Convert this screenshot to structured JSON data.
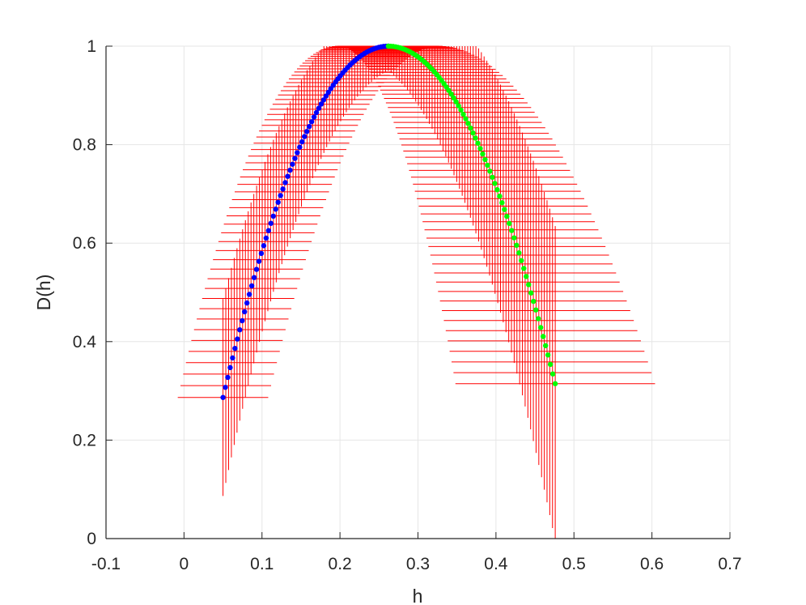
{
  "chart_data": {
    "type": "scatter",
    "title": "",
    "xlabel": "h",
    "ylabel": "D(h)",
    "xlim": [
      -0.1,
      0.7
    ],
    "ylim": [
      0,
      1
    ],
    "xticks": [
      "-0.1",
      "0",
      "0.1",
      "0.2",
      "0.3",
      "0.4",
      "0.5",
      "0.6",
      "0.7"
    ],
    "yticks": [
      "0",
      "0.2",
      "0.4",
      "0.6",
      "0.8",
      "1"
    ],
    "grid": true,
    "box": "left-bottom",
    "spectrum": {
      "fit": {
        "h0": 0.262,
        "a": 0.5,
        "b": 0.21,
        "cL": 0.7,
        "cR": 0.66
      },
      "left_branch": {
        "h_start": 0.05,
        "h_end": 0.262,
        "color": "#0000ff",
        "marker": "dot"
      },
      "right_branch": {
        "h_start": 0.262,
        "h_end": 0.476,
        "color": "#00ff00",
        "marker": "dot"
      },
      "error_bars": {
        "color": "#ff0000",
        "left_count": 60,
        "right_count": 62,
        "left_h_halfwidth": {
          "start": 0.058,
          "end": 0.065
        },
        "left_D_halfwidth": {
          "start": 0.2,
          "end": 0.05
        },
        "right_h_halfwidth": {
          "start": 0.065,
          "end": 0.128
        },
        "right_D_halfwidth": {
          "start": 0.05,
          "end": 0.32
        }
      }
    }
  }
}
